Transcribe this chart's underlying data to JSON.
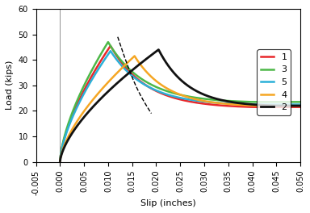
{
  "title": "",
  "xlabel": "Slip (inches)",
  "ylabel": "Load (kips)",
  "xlim": [
    -0.005,
    0.05
  ],
  "ylim": [
    0,
    60
  ],
  "xticks": [
    -0.005,
    0.0,
    0.005,
    0.01,
    0.015,
    0.02,
    0.025,
    0.03,
    0.035,
    0.04,
    0.045,
    0.05
  ],
  "yticks": [
    0,
    10,
    20,
    30,
    40,
    50,
    60
  ],
  "legend": [
    {
      "label": "1",
      "color": "#e8272a"
    },
    {
      "label": "3",
      "color": "#4db848"
    },
    {
      "label": "5",
      "color": "#2bb0d8"
    },
    {
      "label": "4",
      "color": "#f5a623"
    },
    {
      "label": "2",
      "color": "#111111"
    }
  ],
  "dashed_arrow": true,
  "background_color": "#ffffff"
}
